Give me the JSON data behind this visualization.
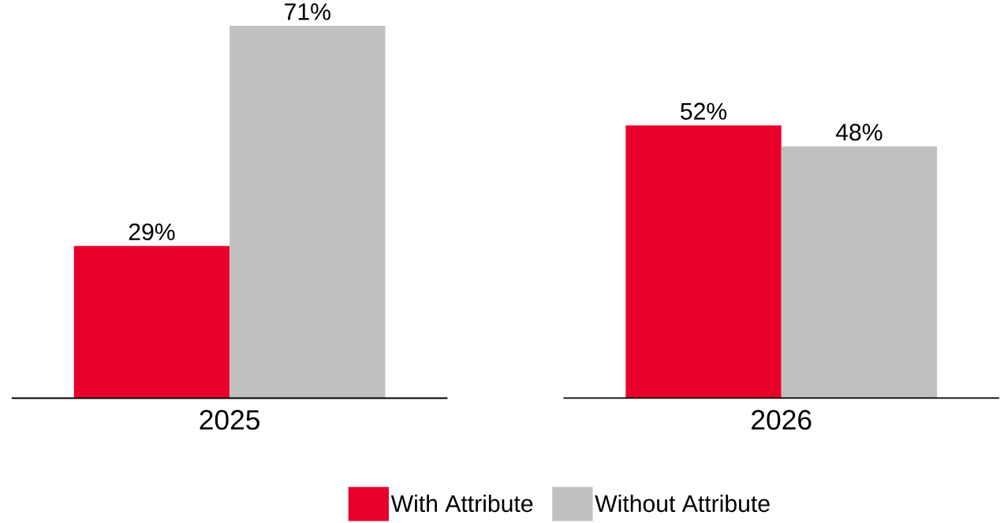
{
  "chart_data": {
    "type": "bar",
    "categories": [
      "2025",
      "2026"
    ],
    "series": [
      {
        "name": "With Attribute",
        "color": "#e8002b",
        "values": [
          29,
          52
        ],
        "value_labels": [
          "29%",
          "52%"
        ]
      },
      {
        "name": "Without Attribute",
        "color": "#c0c0c0",
        "values": [
          71,
          48
        ],
        "value_labels": [
          "71%",
          "48%"
        ]
      }
    ],
    "legend": "bottom"
  }
}
